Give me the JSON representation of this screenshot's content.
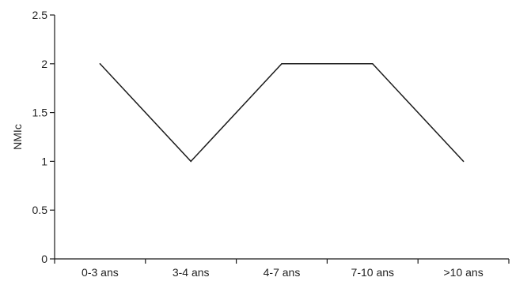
{
  "chart_data": {
    "type": "line",
    "categories": [
      "0-3 ans",
      "3-4 ans",
      "4-7 ans",
      "7-10 ans",
      ">10 ans"
    ],
    "series": [
      {
        "values": [
          2,
          1,
          2,
          2,
          1
        ]
      }
    ],
    "xlabel": "",
    "ylabel": "NMIc",
    "ylim": [
      0,
      2.5
    ],
    "yticks": [
      0,
      0.5,
      1,
      1.5,
      2,
      2.5
    ],
    "ytick_labels": [
      "0",
      "0.5",
      "1",
      "1.5",
      "2",
      "2.5"
    ],
    "grid": false,
    "legend": "none",
    "line_color": "#1a1a1a",
    "axis_color": "#1a1a1a"
  }
}
